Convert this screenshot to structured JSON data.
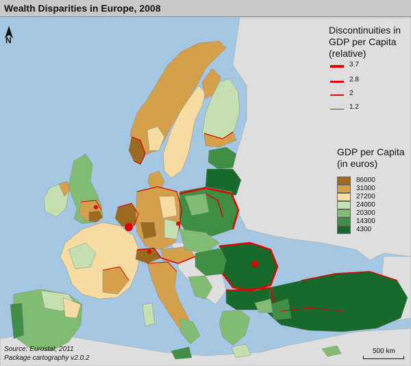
{
  "title": "Wealth Disparities in Europe, 2008",
  "north_label": "N",
  "discontinuity_legend": {
    "title_lines": [
      "Discontinuities in",
      "GDP per Capita",
      "(relative)"
    ],
    "items": [
      {
        "label": "3.7",
        "weight": 4
      },
      {
        "label": "2.8",
        "weight": 3
      },
      {
        "label": "2",
        "weight": 2
      },
      {
        "label": "1.2",
        "weight": 1
      }
    ]
  },
  "gdp_legend": {
    "title_lines": [
      "GDP per Capita",
      "(in euros)"
    ],
    "classes": [
      {
        "label": "86000",
        "color": "#9c6a1e"
      },
      {
        "label": "31000",
        "color": "#d4a04c"
      },
      {
        "label": "27200",
        "color": "#f6dca0"
      },
      {
        "label": "24000",
        "color": "#c4e0b0"
      },
      {
        "label": "20300",
        "color": "#82bc72"
      },
      {
        "label": "14300",
        "color": "#3e8e44"
      },
      {
        "label": "4300",
        "color": "#18692c"
      }
    ]
  },
  "source_lines": [
    "Source: Eurostat, 2011",
    "Package cartography v2.0.2"
  ],
  "scale_label": "500 km",
  "colors": {
    "sea": "#a4c8e4",
    "non_eu_land": "#dedede",
    "discontinuity": "#e00000"
  }
}
